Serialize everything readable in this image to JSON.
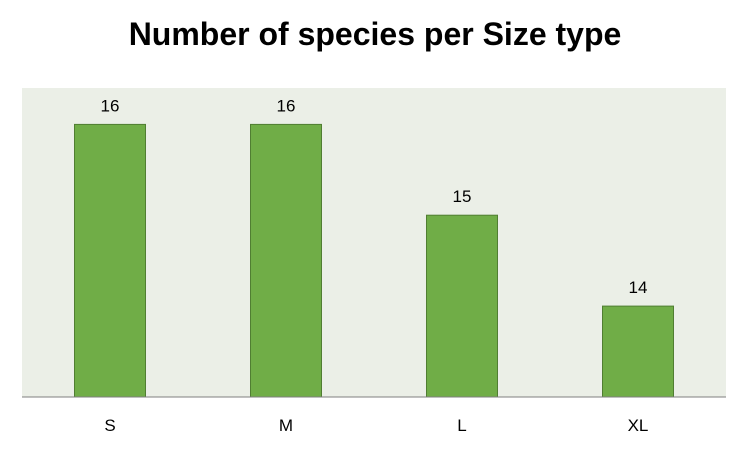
{
  "chart_data": {
    "type": "bar",
    "title": "Number of species per Size type",
    "categories": [
      "S",
      "M",
      "L",
      "XL"
    ],
    "values": [
      16,
      16,
      15,
      14
    ],
    "data_labels": [
      "16",
      "16",
      "15",
      "14"
    ],
    "ylim": [
      13,
      16.4
    ],
    "grid": false,
    "legend": "none",
    "colors": {
      "bar_fill": "#70AD47",
      "bar_stroke": "#507E32",
      "plot_background": "#EBEFE7",
      "axis_line": "#7F7F7F",
      "text": "#000000"
    }
  }
}
